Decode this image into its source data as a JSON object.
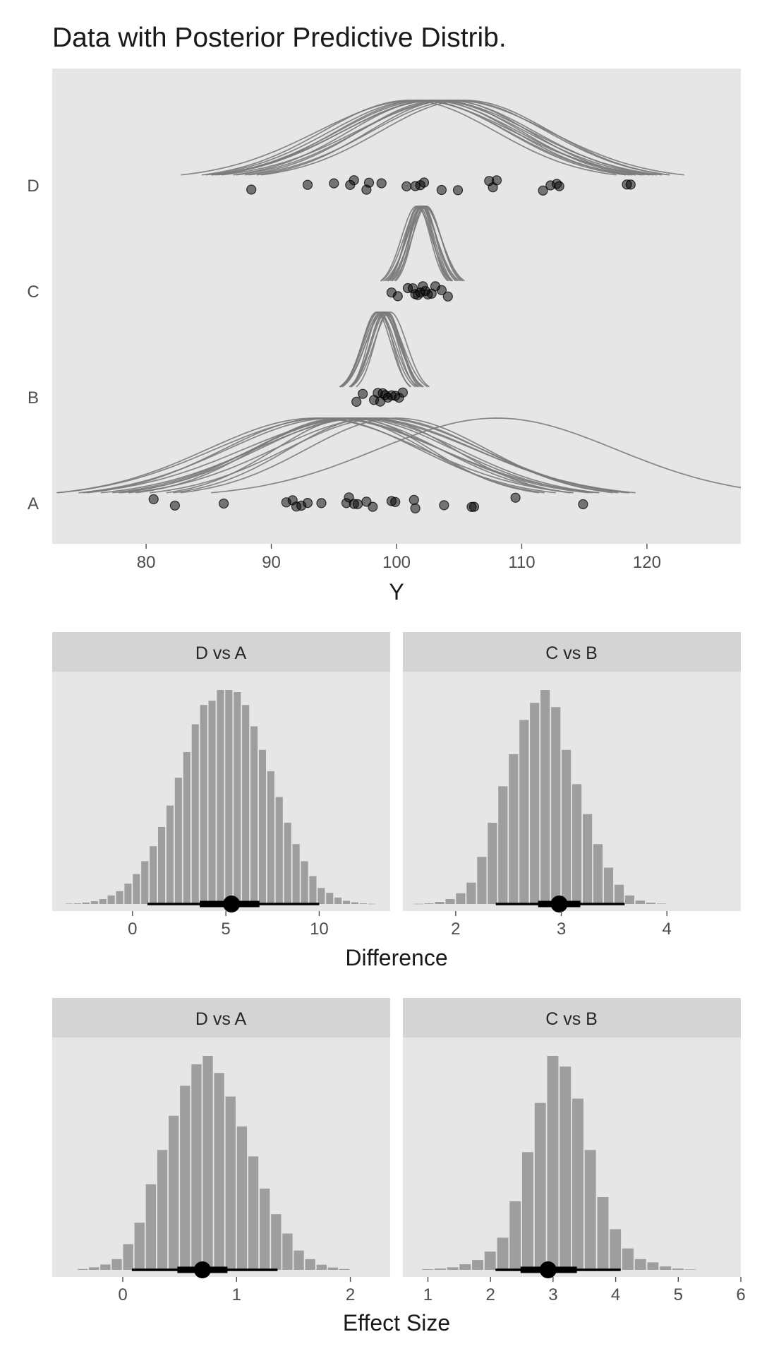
{
  "chart_data": [
    {
      "type": "scatter",
      "title": "Data with Posterior Predictive Distrib.",
      "xlabel": "Y",
      "ylabel": "",
      "xlim": [
        72.5,
        127.5
      ],
      "x_ticks": [
        80,
        90,
        100,
        110,
        120
      ],
      "x_tick_labels": [
        "80",
        "90",
        "100",
        "110",
        "120"
      ],
      "categories": [
        "A",
        "B",
        "C",
        "D"
      ],
      "points": {
        "A": [
          80.6,
          82.3,
          86.2,
          91.2,
          91.7,
          92.0,
          92.4,
          92.9,
          94.0,
          96.0,
          96.2,
          96.6,
          96.9,
          97.6,
          98.1,
          99.6,
          99.9,
          101.4,
          101.5,
          103.8,
          106.0,
          106.2,
          109.5,
          114.9
        ],
        "B": [
          96.8,
          97.3,
          98.2,
          98.5,
          98.7,
          98.9,
          99.1,
          99.3,
          99.6,
          99.9,
          100.2,
          100.5
        ],
        "C": [
          99.6,
          100.1,
          100.9,
          101.3,
          101.5,
          101.7,
          101.9,
          102.1,
          102.3,
          102.5,
          102.8,
          103.1,
          103.6,
          104.1
        ],
        "D": [
          88.4,
          92.9,
          95.0,
          96.3,
          96.6,
          97.6,
          97.8,
          98.8,
          100.8,
          101.5,
          101.9,
          102.2,
          103.6,
          104.9,
          107.4,
          107.7,
          108.0,
          111.7,
          112.3,
          112.8,
          113.0,
          118.4,
          118.7
        ]
      },
      "posterior_predictive_curves": {
        "A": [
          [
            95.0,
            8.5
          ],
          [
            96.5,
            8.0
          ],
          [
            97.5,
            8.8
          ],
          [
            94.0,
            7.8
          ],
          [
            98.5,
            8.3
          ],
          [
            96.0,
            7.5
          ],
          [
            99.0,
            7.8
          ],
          [
            93.5,
            8.6
          ],
          [
            97.0,
            9.2
          ],
          [
            95.5,
            6.8
          ],
          [
            100.0,
            7.2
          ],
          [
            98.0,
            6.6
          ],
          [
            96.5,
            6.2
          ],
          [
            108.0,
            9.5
          ],
          [
            97.0,
            8.0
          ],
          [
            94.5,
            9.0
          ]
        ],
        "B": [
          [
            98.5,
            1.25
          ],
          [
            99.0,
            1.1
          ],
          [
            98.8,
            1.4
          ],
          [
            99.2,
            1.2
          ],
          [
            99.5,
            1.3
          ],
          [
            98.7,
            1.0
          ],
          [
            99.0,
            1.45
          ],
          [
            98.4,
            1.15
          ],
          [
            99.3,
            1.05
          ],
          [
            98.9,
            1.35
          ],
          [
            99.1,
            1.2
          ],
          [
            98.6,
            1.3
          ]
        ],
        "C": [
          [
            101.8,
            1.05
          ],
          [
            102.0,
            1.2
          ],
          [
            102.2,
            0.95
          ],
          [
            101.9,
            1.3
          ],
          [
            102.1,
            1.1
          ],
          [
            102.3,
            1.25
          ],
          [
            101.7,
            1.0
          ],
          [
            102.4,
            1.15
          ],
          [
            102.0,
            0.9
          ],
          [
            101.6,
            1.2
          ],
          [
            102.2,
            1.35
          ],
          [
            102.0,
            1.0
          ]
        ],
        "D": [
          [
            103.0,
            7.3
          ],
          [
            102.0,
            6.8
          ],
          [
            104.0,
            7.0
          ],
          [
            101.5,
            7.8
          ],
          [
            103.5,
            6.5
          ],
          [
            102.5,
            7.2
          ],
          [
            105.0,
            7.0
          ],
          [
            101.0,
            6.9
          ],
          [
            104.5,
            7.7
          ],
          [
            102.8,
            6.6
          ],
          [
            103.2,
            7.5
          ],
          [
            104.2,
            6.4
          ],
          [
            101.8,
            7.1
          ],
          [
            105.5,
            6.8
          ]
        ]
      },
      "grid": false,
      "legend": "none"
    },
    {
      "type": "bar",
      "subtype": "histogram-facets",
      "xlabel": "Difference",
      "ylabel": "",
      "facets": [
        {
          "strip": "D vs A",
          "xlim": [
            -4.3,
            13.8
          ],
          "x_ticks": [
            0,
            5,
            10
          ],
          "x_tick_labels": [
            "0",
            "5",
            "10"
          ],
          "bin_width": 0.45,
          "bin_start": -3.6,
          "counts": [
            0.2,
            0.3,
            0.7,
            1.3,
            2.3,
            4.0,
            6.0,
            9.5,
            14.0,
            20.0,
            27.0,
            36.0,
            46.0,
            59.0,
            71.0,
            84.0,
            93.0,
            95.0,
            100.0,
            100.0,
            99.0,
            93.0,
            83.0,
            72.0,
            62.0,
            50.0,
            38.0,
            28.0,
            20.0,
            13.0,
            7.5,
            5.2,
            3.0,
            1.5,
            0.8,
            0.3,
            0.1
          ],
          "interval": {
            "point": 5.3,
            "inner": [
              3.6,
              6.8
            ],
            "outer": [
              0.8,
              10.0
            ]
          }
        },
        {
          "strip": "C vs B",
          "xlim": [
            1.5,
            4.7
          ],
          "x_ticks": [
            2,
            3,
            4
          ],
          "x_tick_labels": [
            "2",
            "3",
            "4"
          ],
          "bin_width": 0.1,
          "bin_start": 1.6,
          "counts": [
            0.1,
            0.3,
            1.0,
            2.3,
            5.0,
            10.0,
            22.0,
            38.0,
            55.0,
            70.0,
            86.0,
            94.0,
            100.0,
            92.0,
            72.0,
            56.0,
            42.0,
            28.0,
            17.0,
            9.0,
            4.0,
            1.6,
            0.6,
            0.2
          ],
          "interval": {
            "point": 2.98,
            "inner": [
              2.78,
              3.18
            ],
            "outer": [
              2.38,
              3.6
            ]
          }
        }
      ]
    },
    {
      "type": "bar",
      "subtype": "histogram-facets",
      "xlabel": "Effect Size",
      "ylabel": "",
      "facets": [
        {
          "strip": "D vs A",
          "xlim": [
            -0.62,
            2.35
          ],
          "x_ticks": [
            0,
            1,
            2
          ],
          "x_tick_labels": [
            "0",
            "1",
            "2"
          ],
          "bin_width": 0.1,
          "bin_start": -0.4,
          "counts": [
            0.4,
            1.2,
            2.5,
            5.0,
            12.0,
            22.0,
            40.0,
            56.0,
            72.0,
            86.0,
            96.0,
            100.0,
            92.0,
            81.0,
            67.0,
            53.0,
            38.0,
            26.0,
            17.0,
            9.0,
            5.0,
            2.4,
            1.1,
            0.4
          ],
          "interval": {
            "point": 0.7,
            "inner": [
              0.48,
              0.92
            ],
            "outer": [
              0.08,
              1.36
            ]
          }
        },
        {
          "strip": "C vs B",
          "xlim": [
            0.6,
            6.0
          ],
          "x_ticks": [
            1,
            2,
            3,
            4,
            5,
            6
          ],
          "x_tick_labels": [
            "1",
            "2",
            "3",
            "4",
            "5",
            "6"
          ],
          "bin_width": 0.2,
          "bin_start": 0.9,
          "counts": [
            0.3,
            0.6,
            1.2,
            2.6,
            4.6,
            8.5,
            15.0,
            32.0,
            55.0,
            78.0,
            100.0,
            95.0,
            80.0,
            56.0,
            34.0,
            19.0,
            10.0,
            5.0,
            3.5,
            1.6,
            0.6,
            0.2
          ],
          "interval": {
            "point": 2.92,
            "inner": [
              2.48,
              3.38
            ],
            "outer": [
              2.08,
              4.08
            ]
          }
        }
      ]
    }
  ]
}
